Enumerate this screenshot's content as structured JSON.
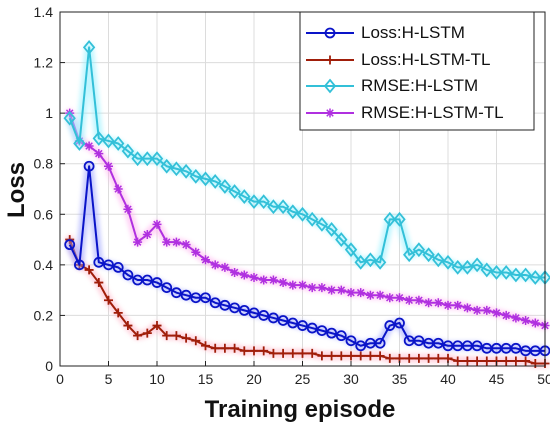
{
  "chart_data": {
    "type": "line",
    "title": "",
    "xlabel": "Training episode",
    "ylabel": "Loss",
    "xlim": [
      0,
      50
    ],
    "ylim": [
      0,
      1.4
    ],
    "xticks": [
      0,
      5,
      10,
      15,
      20,
      25,
      30,
      35,
      40,
      45,
      50
    ],
    "yticks": [
      0,
      0.2,
      0.4,
      0.6,
      0.8,
      1,
      1.2,
      1.4
    ],
    "xtick_labels": [
      "0",
      "5",
      "10",
      "15",
      "20",
      "25",
      "30",
      "35",
      "40",
      "45",
      "50"
    ],
    "ytick_labels": [
      "0",
      "0.2",
      "0.4",
      "0.6",
      "0.8",
      "1",
      "1.2",
      "1.4"
    ],
    "grid": true,
    "legend_position": "top-right",
    "x": [
      1,
      2,
      3,
      4,
      5,
      6,
      7,
      8,
      9,
      10,
      11,
      12,
      13,
      14,
      15,
      16,
      17,
      18,
      19,
      20,
      21,
      22,
      23,
      24,
      25,
      26,
      27,
      28,
      29,
      30,
      31,
      32,
      33,
      34,
      35,
      36,
      37,
      38,
      39,
      40,
      41,
      42,
      43,
      44,
      45,
      46,
      47,
      48,
      49,
      50
    ],
    "series": [
      {
        "name": "Loss:H-LSTM",
        "color": "#0a14c8",
        "glow": "#9aa0ff",
        "marker": "circle",
        "values": [
          0.48,
          0.4,
          0.79,
          0.41,
          0.4,
          0.39,
          0.36,
          0.34,
          0.34,
          0.33,
          0.31,
          0.29,
          0.28,
          0.27,
          0.27,
          0.25,
          0.24,
          0.23,
          0.22,
          0.21,
          0.2,
          0.19,
          0.18,
          0.17,
          0.16,
          0.15,
          0.14,
          0.13,
          0.12,
          0.1,
          0.08,
          0.09,
          0.09,
          0.16,
          0.17,
          0.1,
          0.1,
          0.09,
          0.09,
          0.08,
          0.08,
          0.08,
          0.08,
          0.07,
          0.07,
          0.07,
          0.07,
          0.06,
          0.06,
          0.06
        ]
      },
      {
        "name": "Loss:H-LSTM-TL",
        "color": "#a01e0a",
        "glow": "#ffb3c6",
        "marker": "plus",
        "values": [
          0.5,
          0.4,
          0.38,
          0.33,
          0.26,
          0.21,
          0.16,
          0.12,
          0.13,
          0.16,
          0.12,
          0.12,
          0.11,
          0.1,
          0.08,
          0.07,
          0.07,
          0.07,
          0.06,
          0.06,
          0.06,
          0.05,
          0.05,
          0.05,
          0.05,
          0.05,
          0.04,
          0.04,
          0.04,
          0.04,
          0.04,
          0.04,
          0.04,
          0.03,
          0.03,
          0.03,
          0.03,
          0.03,
          0.03,
          0.03,
          0.02,
          0.02,
          0.02,
          0.02,
          0.02,
          0.02,
          0.02,
          0.02,
          0.01,
          0.01
        ]
      },
      {
        "name": "RMSE:H-LSTM",
        "color": "#33c0d8",
        "glow": "#8ef0ff",
        "marker": "diamond",
        "values": [
          0.98,
          0.88,
          1.26,
          0.9,
          0.89,
          0.88,
          0.85,
          0.82,
          0.82,
          0.82,
          0.79,
          0.78,
          0.77,
          0.75,
          0.74,
          0.73,
          0.71,
          0.69,
          0.67,
          0.65,
          0.65,
          0.63,
          0.63,
          0.61,
          0.6,
          0.58,
          0.56,
          0.54,
          0.5,
          0.46,
          0.41,
          0.42,
          0.41,
          0.58,
          0.58,
          0.44,
          0.46,
          0.44,
          0.42,
          0.41,
          0.39,
          0.39,
          0.4,
          0.38,
          0.37,
          0.37,
          0.36,
          0.36,
          0.35,
          0.35
        ]
      },
      {
        "name": "RMSE:H-LSTM-TL",
        "color": "#b030e0",
        "glow": "#ffb0ee",
        "marker": "star",
        "values": [
          1.0,
          0.89,
          0.87,
          0.84,
          0.79,
          0.7,
          0.62,
          0.49,
          0.52,
          0.56,
          0.49,
          0.49,
          0.48,
          0.45,
          0.42,
          0.4,
          0.39,
          0.37,
          0.36,
          0.35,
          0.34,
          0.34,
          0.33,
          0.32,
          0.32,
          0.31,
          0.31,
          0.3,
          0.3,
          0.29,
          0.29,
          0.28,
          0.28,
          0.27,
          0.27,
          0.26,
          0.26,
          0.25,
          0.25,
          0.24,
          0.24,
          0.23,
          0.22,
          0.22,
          0.21,
          0.2,
          0.19,
          0.18,
          0.17,
          0.16
        ]
      }
    ]
  }
}
